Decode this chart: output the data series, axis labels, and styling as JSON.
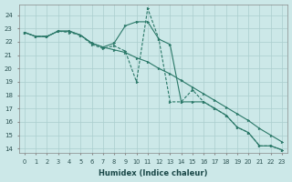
{
  "xlabel": "Humidex (Indice chaleur)",
  "xlim": [
    -0.5,
    23.5
  ],
  "ylim": [
    13.7,
    24.8
  ],
  "yticks": [
    14,
    15,
    16,
    17,
    18,
    19,
    20,
    21,
    22,
    23,
    24
  ],
  "xticks": [
    0,
    1,
    2,
    3,
    4,
    5,
    6,
    7,
    8,
    9,
    10,
    11,
    12,
    13,
    14,
    15,
    16,
    17,
    18,
    19,
    20,
    21,
    22,
    23
  ],
  "bg_color": "#cce8e8",
  "grid_color": "#aacece",
  "line_color": "#2a7868",
  "line1_y": [
    22.7,
    22.4,
    22.4,
    22.8,
    22.8,
    22.5,
    21.9,
    21.6,
    21.4,
    21.2,
    20.8,
    20.5,
    20.0,
    19.6,
    19.1,
    18.6,
    18.1,
    17.6,
    17.1,
    16.6,
    16.1,
    15.5,
    15.0,
    14.5
  ],
  "line2_y": [
    22.7,
    22.4,
    22.4,
    22.8,
    22.8,
    22.5,
    21.9,
    21.6,
    21.9,
    23.2,
    23.5,
    23.5,
    22.2,
    21.8,
    17.5,
    17.5,
    17.5,
    17.0,
    16.5,
    15.6,
    15.2,
    14.2,
    14.2,
    13.9
  ],
  "line3_y": [
    22.7,
    22.4,
    22.4,
    22.8,
    22.7,
    22.5,
    21.8,
    21.5,
    21.7,
    21.3,
    19.0,
    24.5,
    22.2,
    17.5,
    17.5,
    18.4,
    17.5,
    17.0,
    16.5,
    15.6,
    15.2,
    14.2,
    14.2,
    13.9
  ]
}
